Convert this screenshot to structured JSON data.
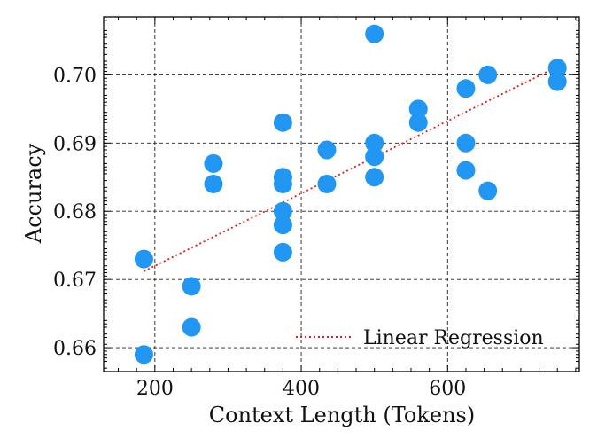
{
  "chart_data": {
    "type": "scatter",
    "xlabel": "Context Length (Tokens)",
    "ylabel": "Accuracy",
    "xlim": [
      130,
      780
    ],
    "ylim": [
      0.6565,
      0.7085
    ],
    "x_ticks": [
      200,
      400,
      600
    ],
    "x_tick_labels": [
      "200",
      "400",
      "600"
    ],
    "y_ticks": [
      0.66,
      0.67,
      0.68,
      0.69,
      0.7
    ],
    "y_tick_labels": [
      "0.66",
      "0.67",
      "0.68",
      "0.69",
      "0.70"
    ],
    "grid": true,
    "legend_position": "lower-right",
    "colors": {
      "points": "#2196f3",
      "regression": "#e41a1c",
      "grid": "#222222"
    },
    "points": [
      {
        "x": 185,
        "y": 0.673
      },
      {
        "x": 185,
        "y": 0.659
      },
      {
        "x": 250,
        "y": 0.669
      },
      {
        "x": 250,
        "y": 0.663
      },
      {
        "x": 280,
        "y": 0.687
      },
      {
        "x": 280,
        "y": 0.684
      },
      {
        "x": 375,
        "y": 0.693
      },
      {
        "x": 375,
        "y": 0.685
      },
      {
        "x": 375,
        "y": 0.684
      },
      {
        "x": 375,
        "y": 0.68
      },
      {
        "x": 375,
        "y": 0.678
      },
      {
        "x": 375,
        "y": 0.674
      },
      {
        "x": 435,
        "y": 0.689
      },
      {
        "x": 435,
        "y": 0.684
      },
      {
        "x": 500,
        "y": 0.706
      },
      {
        "x": 500,
        "y": 0.69
      },
      {
        "x": 500,
        "y": 0.688
      },
      {
        "x": 500,
        "y": 0.685
      },
      {
        "x": 560,
        "y": 0.695
      },
      {
        "x": 560,
        "y": 0.693
      },
      {
        "x": 625,
        "y": 0.698
      },
      {
        "x": 625,
        "y": 0.69
      },
      {
        "x": 625,
        "y": 0.686
      },
      {
        "x": 655,
        "y": 0.7
      },
      {
        "x": 655,
        "y": 0.683
      },
      {
        "x": 750,
        "y": 0.701
      },
      {
        "x": 750,
        "y": 0.699
      }
    ],
    "regression": {
      "name": "Linear Regression",
      "x": [
        185,
        750
      ],
      "y": [
        0.6712,
        0.7012
      ]
    }
  }
}
